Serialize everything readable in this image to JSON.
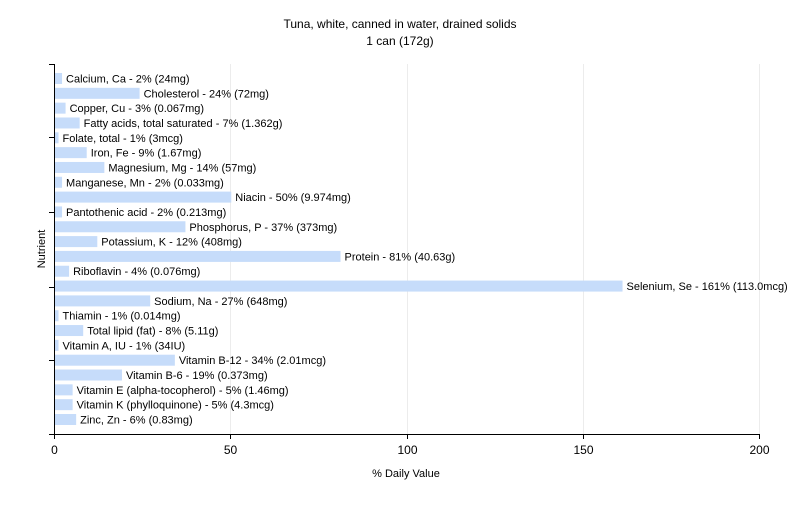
{
  "chart_data": {
    "type": "bar",
    "orientation": "horizontal",
    "title": "Tuna, white, canned in water, drained solids",
    "subtitle": "1 can (172g)",
    "xlabel": "% Daily Value",
    "ylabel": "Nutrient",
    "xlim": [
      0,
      200
    ],
    "x_ticks": [
      "0",
      "50",
      "100",
      "150",
      "200"
    ],
    "grid": true,
    "bar_color": "#c6dcfa",
    "grid_color": "#ececec",
    "categories": [
      "Calcium, Ca",
      "Cholesterol",
      "Copper, Cu",
      "Fatty acids, total saturated",
      "Folate, total",
      "Iron, Fe",
      "Magnesium, Mg",
      "Manganese, Mn",
      "Niacin",
      "Pantothenic acid",
      "Phosphorus, P",
      "Potassium, K",
      "Protein",
      "Riboflavin",
      "Selenium, Se",
      "Sodium, Na",
      "Thiamin",
      "Total lipid (fat)",
      "Vitamin A, IU",
      "Vitamin B-12",
      "Vitamin B-6",
      "Vitamin E (alpha-tocopherol)",
      "Vitamin K (phylloquinone)",
      "Zinc, Zn"
    ],
    "values": [
      2,
      24,
      3,
      7,
      1,
      9,
      14,
      2,
      50,
      2,
      37,
      12,
      81,
      4,
      161,
      27,
      1,
      8,
      1,
      34,
      19,
      5,
      5,
      6
    ],
    "labels": [
      "Calcium, Ca - 2% (24mg)",
      "Cholesterol - 24% (72mg)",
      "Copper, Cu - 3% (0.067mg)",
      "Fatty acids, total saturated - 7% (1.362g)",
      "Folate, total - 1% (3mcg)",
      "Iron, Fe - 9% (1.67mg)",
      "Magnesium, Mg - 14% (57mg)",
      "Manganese, Mn - 2% (0.033mg)",
      "Niacin - 50% (9.974mg)",
      "Pantothenic acid - 2% (0.213mg)",
      "Phosphorus, P - 37% (373mg)",
      "Potassium, K - 12% (408mg)",
      "Protein - 81% (40.63g)",
      "Riboflavin - 4% (0.076mg)",
      "Selenium, Se - 161% (113.0mcg)",
      "Sodium, Na - 27% (648mg)",
      "Thiamin - 1% (0.014mg)",
      "Total lipid (fat) - 8% (5.11g)",
      "Vitamin A, IU - 1% (34IU)",
      "Vitamin B-12 - 34% (2.01mcg)",
      "Vitamin B-6 - 19% (0.373mg)",
      "Vitamin E (alpha-tocopherol) - 5% (1.46mg)",
      "Vitamin K (phylloquinone) - 5% (4.3mcg)",
      "Zinc, Zn - 6% (0.83mg)"
    ]
  }
}
